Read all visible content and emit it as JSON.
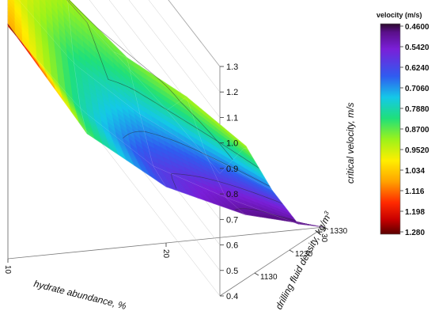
{
  "chart_data": {
    "type": "surface3d",
    "zlabel": "critical velocity,  m/s",
    "xlabel": "hydrate abundance,  %",
    "ylabel": "drilling fluid density,  kg/m",
    "ylabel_sup": "3",
    "x_ticks": [
      "10",
      "20",
      "30"
    ],
    "y_ticks": [
      "1130",
      "1230",
      "1330"
    ],
    "z_ticks": [
      "0.4",
      "0.5",
      "0.6",
      "0.7",
      "0.8",
      "0.9",
      "1.0",
      "1.1",
      "1.2",
      "1.3"
    ],
    "x": [
      10,
      15,
      20,
      25,
      30
    ],
    "y": [
      1030,
      1105,
      1180,
      1255,
      1330
    ],
    "z_rows": [
      [
        0.8,
        0.78,
        0.82,
        0.86,
        0.88
      ],
      [
        1.02,
        0.92,
        0.88,
        0.92,
        0.92
      ],
      [
        1.0,
        0.82,
        0.74,
        0.7,
        0.68
      ],
      [
        1.08,
        0.8,
        0.62,
        0.54,
        0.48
      ],
      [
        1.32,
        0.86,
        0.62,
        0.48,
        0.4
      ]
    ],
    "xlim": [
      10,
      30
    ],
    "ylim": [
      1030,
      1330
    ],
    "zlim": [
      0.4,
      1.3
    ],
    "grid": true,
    "colorbar": {
      "title": "velocity  (m/s)",
      "ticks": [
        "0.4600",
        "0.5420",
        "0.6240",
        "0.7060",
        "0.7880",
        "0.8700",
        "0.9520",
        "1.034",
        "1.116",
        "1.198",
        "1.280"
      ],
      "min": 0.46,
      "max": 1.28
    }
  }
}
